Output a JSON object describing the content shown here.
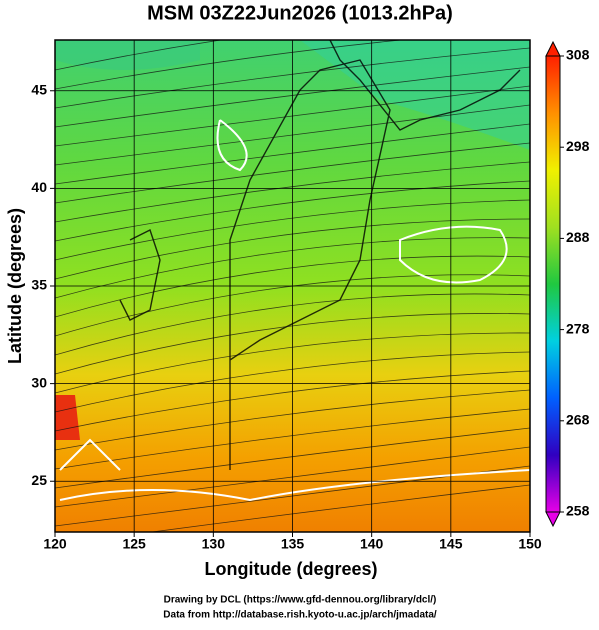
{
  "chart_data": {
    "type": "contour",
    "title": "MSM 03Z22Jun2026 (1013.2hPa)",
    "xlabel": "Longitude (degrees)",
    "ylabel": "Latitude  (degrees)",
    "xlim": [
      120,
      150
    ],
    "xticks": [
      120,
      125,
      130,
      135,
      140,
      145,
      150
    ],
    "ylim": [
      22.4,
      47.6
    ],
    "yticks": [
      25,
      30,
      35,
      40,
      45
    ],
    "grid": true,
    "colorbar": {
      "lim": [
        258,
        308
      ],
      "ticks": [
        258,
        268,
        278,
        288,
        298,
        308
      ],
      "colors": [
        "#e600e6",
        "#3000c0",
        "#0060ff",
        "#00d0e0",
        "#20c840",
        "#a0e020",
        "#f0f000",
        "#ff9000",
        "#ff2000"
      ]
    },
    "credits": [
      "Drawing by DCL (https://www.gfd-dennou.org/library/dcl/)",
      "Data from http://database.rish.kyoto-u.ac.jp/arch/jmadata/"
    ]
  }
}
